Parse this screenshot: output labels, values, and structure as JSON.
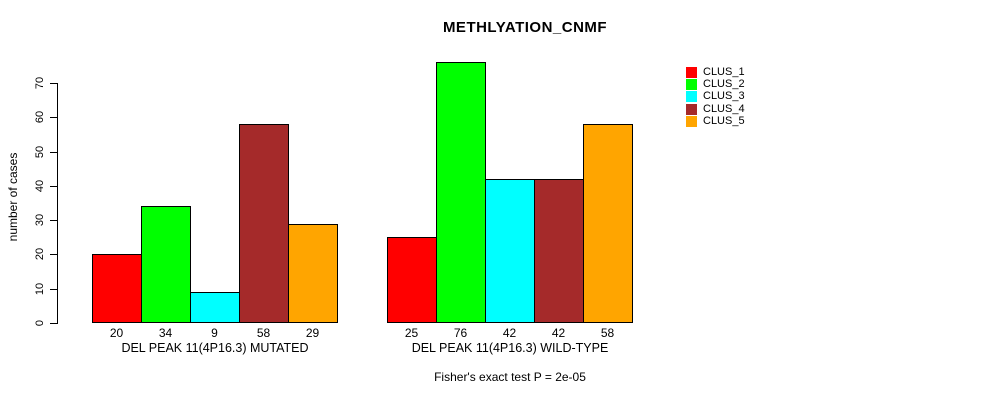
{
  "chart_data": {
    "type": "bar",
    "title": "METHLYATION_CNMF",
    "ylabel": "number of cases",
    "xlabel": "",
    "ylim": [
      0,
      70
    ],
    "yticks": [
      0,
      10,
      20,
      30,
      40,
      50,
      60,
      70
    ],
    "grid": false,
    "legend_position": "top-right",
    "bar_values_shown": true,
    "categories": [
      "DEL PEAK 11(4P16.3) MUTATED",
      "DEL PEAK 11(4P16.3) WILD-TYPE"
    ],
    "series": [
      {
        "name": "CLUS_1",
        "color": "#FF0000",
        "values": [
          20,
          25
        ]
      },
      {
        "name": "CLUS_2",
        "color": "#00FF00",
        "values": [
          34,
          76
        ]
      },
      {
        "name": "CLUS_3",
        "color": "#00FFFF",
        "values": [
          9,
          42
        ]
      },
      {
        "name": "CLUS_4",
        "color": "#A52A2A",
        "values": [
          58,
          42
        ]
      },
      {
        "name": "CLUS_5",
        "color": "#FFA500",
        "values": [
          29,
          58
        ]
      }
    ],
    "annotation": "Fisher's exact test P = 2e-05"
  },
  "colors": {
    "axis": "#000000",
    "bar_border": "#000000",
    "background": "#FFFFFF",
    "text": "#000000"
  }
}
